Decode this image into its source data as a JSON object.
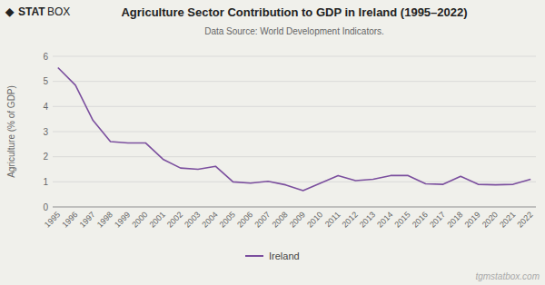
{
  "chart_data": {
    "type": "line",
    "title": "Agriculture Sector Contribution to GDP in Ireland (1995–2022)",
    "subtitle": "Data Source: World Development Indicators.",
    "y_label": "Agriculture (% of GDP)",
    "annotations": [
      "◆",
      "STAT",
      "BOX",
      "tgmstatbox.com"
    ],
    "x": [
      1995,
      1996,
      1997,
      1998,
      1999,
      2000,
      2001,
      2002,
      2003,
      2004,
      2005,
      2006,
      2007,
      2008,
      2009,
      2010,
      2011,
      2012,
      2013,
      2014,
      2015,
      2016,
      2017,
      2018,
      2019,
      2020,
      2021,
      2022
    ],
    "series": [
      {
        "name": "Ireland",
        "color": "#7B4F9E",
        "values": [
          5.55,
          4.85,
          3.45,
          2.6,
          2.55,
          2.55,
          1.9,
          1.55,
          1.5,
          1.62,
          1.0,
          0.95,
          1.02,
          0.88,
          0.65,
          0.95,
          1.25,
          1.05,
          1.1,
          1.25,
          1.25,
          0.92,
          0.9,
          1.22,
          0.9,
          0.88,
          0.9,
          1.1
        ]
      }
    ],
    "xlim": [
      1994.7,
      2022.3
    ],
    "xticks": [
      1995,
      1996,
      1997,
      1998,
      1999,
      2000,
      2001,
      2002,
      2003,
      2004,
      2005,
      2006,
      2007,
      2008,
      2009,
      2010,
      2011,
      2012,
      2013,
      2014,
      2015,
      2016,
      2017,
      2018,
      2019,
      2020,
      2021,
      2022
    ],
    "ylim": [
      0,
      6
    ],
    "yticks": [
      0,
      1,
      2,
      3,
      4,
      5,
      6
    ],
    "grid": true,
    "legend": "bottom"
  }
}
